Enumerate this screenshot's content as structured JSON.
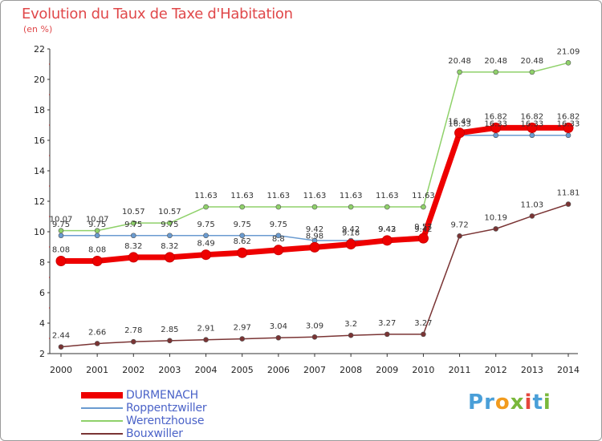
{
  "title": "Evolution du Taux de Taxe d'Habitation",
  "subtitle": "(en %)",
  "colors": {
    "title": "#e0484a",
    "DURMENACH": "#ee0000",
    "Roppentzwiller": "#6a9bd0",
    "Werentzhouse": "#8fd16a",
    "Bouxwiller": "#7a3434",
    "legend_text": "#4b63c8"
  },
  "logo": {
    "text": "Proxiti",
    "letters": [
      "P",
      "r",
      "o",
      "x",
      "i",
      "t",
      "i"
    ],
    "colors": [
      "#4a9fd8",
      "#4a9fd8",
      "#f29b1d",
      "#7ab83b",
      "#e5463c",
      "#4a9fd8",
      "#7ab83b"
    ]
  },
  "chart_data": {
    "type": "line",
    "x": [
      2000,
      2001,
      2002,
      2003,
      2004,
      2005,
      2006,
      2007,
      2008,
      2009,
      2010,
      2011,
      2012,
      2013,
      2014
    ],
    "ylim": [
      2,
      22
    ],
    "yticks": [
      2,
      4,
      6,
      8,
      10,
      12,
      14,
      16,
      18,
      20,
      22
    ],
    "grid": false,
    "legend_position": "bottom-left",
    "series": [
      {
        "name": "DURMENACH",
        "color": "#ee0000",
        "width": 7,
        "values": [
          8.08,
          8.08,
          8.32,
          8.32,
          8.49,
          8.62,
          8.8,
          8.98,
          9.18,
          9.43,
          9.57,
          16.49,
          16.82,
          16.82,
          16.82
        ],
        "labels": [
          "8.08",
          "8.08",
          "8.32",
          "8.32",
          "8.49",
          "8.62",
          "8.8",
          "8.98",
          "9.18",
          "9.43",
          "9.57",
          "16.49",
          "16.82",
          "16.82",
          "16.82"
        ]
      },
      {
        "name": "Roppentzwiller",
        "color": "#6a9bd0",
        "width": 1.5,
        "values": [
          9.75,
          9.75,
          9.75,
          9.75,
          9.75,
          9.75,
          9.75,
          9.42,
          9.42,
          9.42,
          9.42,
          16.33,
          16.33,
          16.33,
          16.33
        ],
        "labels": [
          "9.75",
          "9.75",
          "9.75",
          "9.75",
          "9.75",
          "9.75",
          "9.75",
          "9.42",
          "9.42",
          "9.42",
          "9.42",
          "16.33",
          "16.33",
          "16.33",
          "16.33"
        ]
      },
      {
        "name": "Werentzhouse",
        "color": "#8fd16a",
        "width": 1.5,
        "values": [
          10.07,
          10.07,
          10.57,
          10.57,
          11.63,
          11.63,
          11.63,
          11.63,
          11.63,
          11.63,
          11.63,
          20.48,
          20.48,
          20.48,
          21.09
        ],
        "labels": [
          "10.07",
          "10.07",
          "10.57",
          "10.57",
          "11.63",
          "11.63",
          "11.63",
          "11.63",
          "11.63",
          "11.63",
          "11.63",
          "20.48",
          "20.48",
          "20.48",
          "21.09"
        ]
      },
      {
        "name": "Bouxwiller",
        "color": "#7a3434",
        "width": 1.5,
        "values": [
          2.44,
          2.66,
          2.78,
          2.85,
          2.91,
          2.97,
          3.04,
          3.09,
          3.2,
          3.27,
          3.27,
          9.72,
          10.19,
          11.03,
          11.81
        ],
        "labels": [
          "2.44",
          "2.66",
          "2.78",
          "2.85",
          "2.91",
          "2.97",
          "3.04",
          "3.09",
          "3.2",
          "3.27",
          "3.27",
          "9.72",
          "10.19",
          "11.03",
          "11.81"
        ]
      }
    ]
  }
}
